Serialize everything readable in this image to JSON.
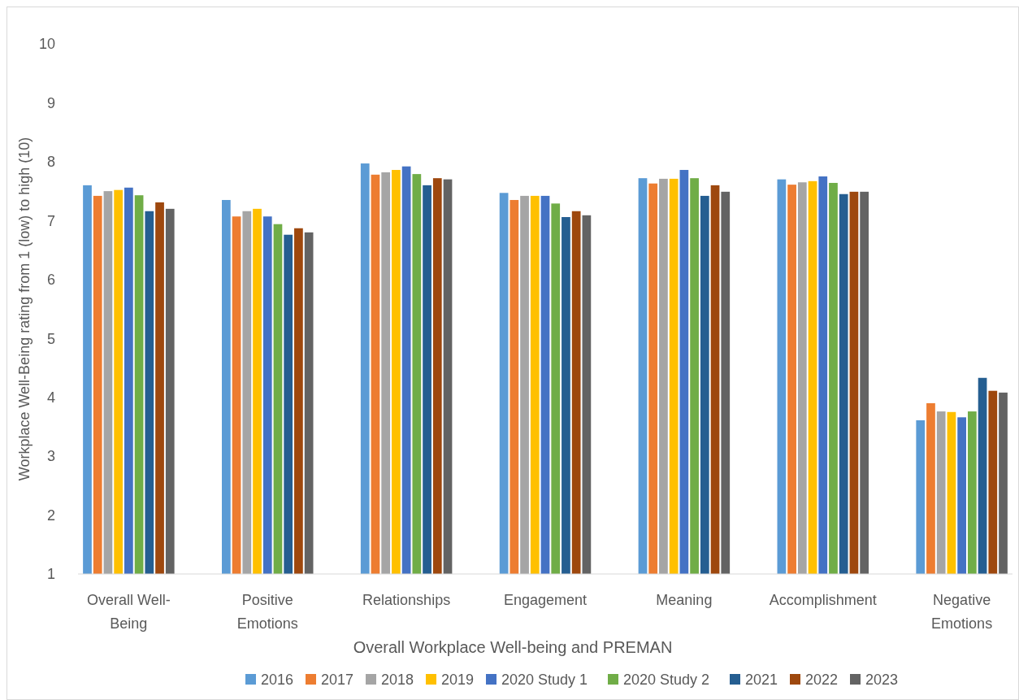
{
  "chart_data": {
    "type": "bar",
    "xlabel": "Overall Workplace Well-being and PREMAN",
    "ylabel": "Workplace Well-Being rating from 1 (low) to high (10)",
    "categories": [
      "Overall Well-Being",
      "Positive Emotions",
      "Relationships",
      "Engagement",
      "Meaning",
      "Accomplishment",
      "Negative Emotions"
    ],
    "ylim": [
      1,
      10
    ],
    "yticks": [
      1,
      2,
      3,
      4,
      5,
      6,
      7,
      8,
      9,
      10
    ],
    "grid": false,
    "legend": "bottom",
    "series": [
      {
        "name": "2016",
        "color": "#5b9bd5",
        "values": [
          7.6,
          7.35,
          7.97,
          7.47,
          7.72,
          7.7,
          3.61
        ]
      },
      {
        "name": "2017",
        "color": "#ed7d31",
        "values": [
          7.42,
          7.07,
          7.78,
          7.35,
          7.63,
          7.61,
          3.9
        ]
      },
      {
        "name": "2018",
        "color": "#a5a5a5",
        "values": [
          7.5,
          7.16,
          7.82,
          7.42,
          7.71,
          7.65,
          3.76
        ]
      },
      {
        "name": "2019",
        "color": "#ffc000",
        "values": [
          7.52,
          7.2,
          7.86,
          7.42,
          7.71,
          7.67,
          3.75
        ]
      },
      {
        "name": "2020 Study 1",
        "color": "#4472c4",
        "values": [
          7.56,
          7.07,
          7.92,
          7.42,
          7.86,
          7.75,
          3.66
        ]
      },
      {
        "name": "2020 Study 2",
        "color": "#70ad47",
        "values": [
          7.43,
          6.94,
          7.79,
          7.29,
          7.72,
          7.64,
          3.76
        ]
      },
      {
        "name": "2021",
        "color": "#255e91",
        "values": [
          7.16,
          6.76,
          7.6,
          7.06,
          7.42,
          7.45,
          4.33
        ]
      },
      {
        "name": "2022",
        "color": "#9e480e",
        "values": [
          7.31,
          6.87,
          7.72,
          7.16,
          7.6,
          7.49,
          4.11
        ]
      },
      {
        "name": "2023",
        "color": "#636363",
        "values": [
          7.2,
          6.8,
          7.7,
          7.09,
          7.49,
          7.49,
          4.08
        ]
      }
    ]
  }
}
